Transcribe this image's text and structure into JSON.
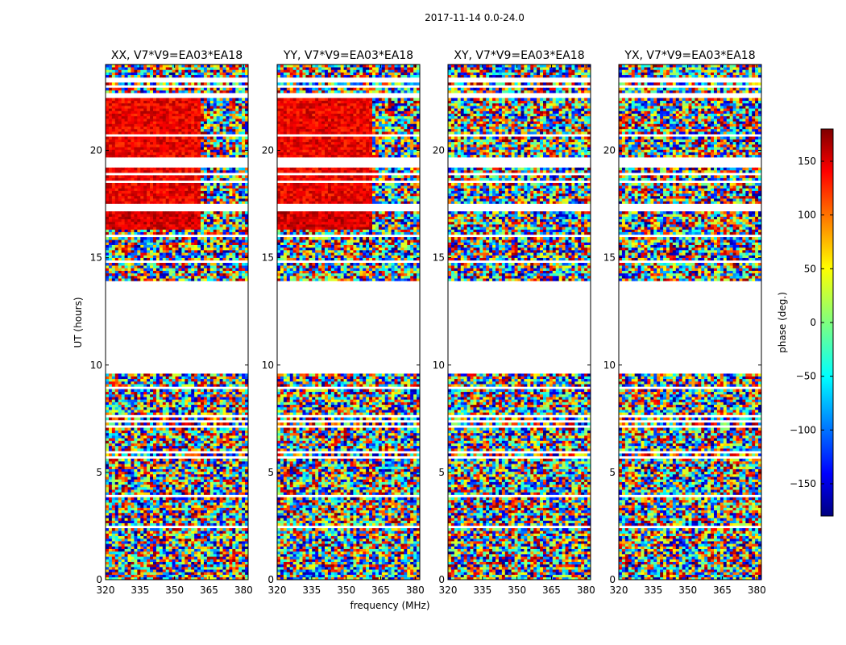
{
  "chart_data": {
    "type": "heatmap",
    "suptitle": "2017-11-14 0.0-24.0",
    "xlabel": "frequency (MHz)",
    "ylabel": "UT (hours)",
    "xlim": [
      320,
      382
    ],
    "ylim": [
      0,
      24
    ],
    "x_ticks": [
      320,
      335,
      350,
      365,
      380
    ],
    "y_ticks": [
      0,
      5,
      10,
      15,
      20
    ],
    "colormap": "jet",
    "colorbar": {
      "label": "phase (deg.)",
      "range": [
        -180,
        180
      ],
      "ticks": [
        150,
        100,
        50,
        0,
        -50,
        -100,
        -150
      ],
      "tick_labels": [
        "150",
        "100",
        "50",
        "0",
        "−50",
        "−100",
        "−150"
      ],
      "colors": [
        "#7f0000",
        "#ff0000",
        "#ff7f00",
        "#ffff00",
        "#7fff7f",
        "#00ffff",
        "#007fff",
        "#0000ff",
        "#00007f"
      ]
    },
    "panels": [
      {
        "title": "XX, V7*V9=EA03*EA18"
      },
      {
        "title": "YY, V7*V9=EA03*EA18"
      },
      {
        "title": "XY, V7*V9=EA03*EA18"
      },
      {
        "title": "YX, V7*V9=EA03*EA18"
      }
    ],
    "no_data_gaps_ut": [
      [
        9.6,
        13.9
      ],
      [
        17.1,
        17.5
      ],
      [
        22.4,
        22.7
      ]
    ],
    "coherent_phase_regions": [
      {
        "polarizations": [
          "XX",
          "YY"
        ],
        "ut_range": [
          17.5,
          22.4
        ],
        "freq_range": [
          320,
          361
        ],
        "phase_deg": 140
      },
      {
        "polarizations": [
          "XX",
          "YY"
        ],
        "ut_range": [
          16.3,
          17.1
        ],
        "freq_range": [
          320,
          361
        ],
        "phase_deg": 150
      }
    ]
  }
}
